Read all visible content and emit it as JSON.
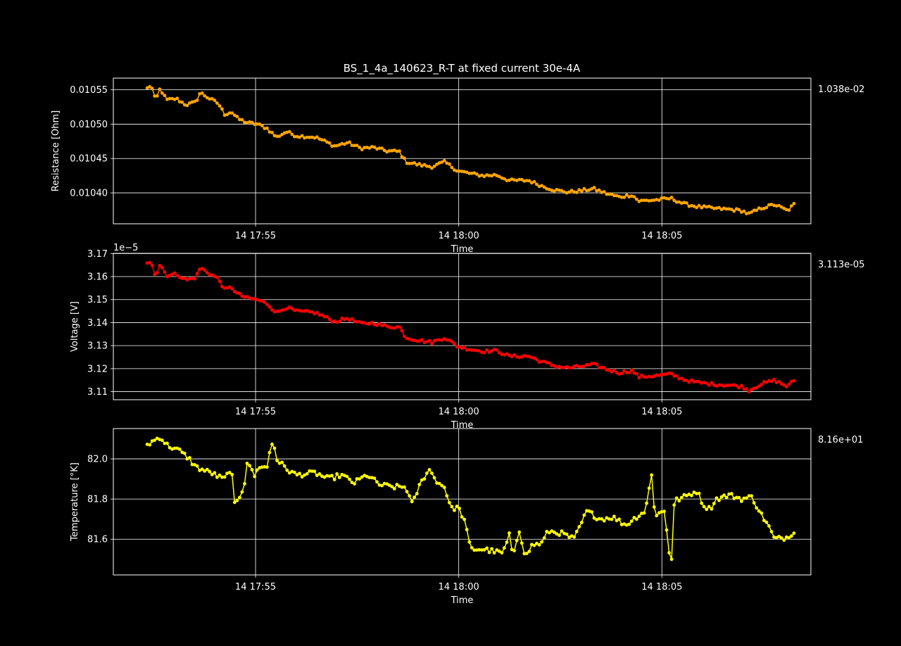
{
  "title": "BS_1_4a_140623_R-T at fixed current 30e-4A",
  "colors": {
    "background": "#000000",
    "axes": "#ffffff",
    "grid": "#ffffff"
  },
  "chart_data": [
    {
      "type": "line",
      "ylabel": "Resistance [Ohm]",
      "xlabel": "Time",
      "x_start": "17:52:20",
      "x_end": "18:08:15",
      "xticks": [
        "14 17:55",
        "14 18:00",
        "14 18:05"
      ],
      "xlim": [
        "17:51:30",
        "18:08:40"
      ],
      "yticks": [
        "0.01040",
        "0.01045",
        "0.01050",
        "0.01055"
      ],
      "ylim": [
        0.010355,
        0.010567
      ],
      "offset_text": "",
      "right_label": "1.038e-02",
      "series": [
        {
          "color": "#ffa500",
          "marker": "circle",
          "keypoints": [
            [
              0,
              0.010552
            ],
            [
              0.006,
              0.010557
            ],
            [
              0.013,
              0.010534
            ],
            [
              0.02,
              0.010552
            ],
            [
              0.03,
              0.010535
            ],
            [
              0.045,
              0.010537
            ],
            [
              0.06,
              0.010528
            ],
            [
              0.075,
              0.010532
            ],
            [
              0.082,
              0.010546
            ],
            [
              0.095,
              0.010538
            ],
            [
              0.11,
              0.01053
            ],
            [
              0.12,
              0.010514
            ],
            [
              0.13,
              0.010518
            ],
            [
              0.14,
              0.010508
            ],
            [
              0.155,
              0.010502
            ],
            [
              0.17,
              0.0105
            ],
            [
              0.185,
              0.010494
            ],
            [
              0.2,
              0.010481
            ],
            [
              0.215,
              0.010489
            ],
            [
              0.23,
              0.010483
            ],
            [
              0.26,
              0.010481
            ],
            [
              0.27,
              0.010477
            ],
            [
              0.29,
              0.010468
            ],
            [
              0.31,
              0.010473
            ],
            [
              0.33,
              0.010465
            ],
            [
              0.35,
              0.010466
            ],
            [
              0.37,
              0.010461
            ],
            [
              0.39,
              0.01046
            ],
            [
              0.4,
              0.010445
            ],
            [
              0.42,
              0.010441
            ],
            [
              0.44,
              0.010438
            ],
            [
              0.46,
              0.010445
            ],
            [
              0.48,
              0.010432
            ],
            [
              0.5,
              0.010428
            ],
            [
              0.52,
              0.010425
            ],
            [
              0.54,
              0.010426
            ],
            [
              0.56,
              0.010418
            ],
            [
              0.59,
              0.010418
            ],
            [
              0.61,
              0.01041
            ],
            [
              0.63,
              0.010404
            ],
            [
              0.65,
              0.010401
            ],
            [
              0.67,
              0.010403
            ],
            [
              0.69,
              0.010406
            ],
            [
              0.71,
              0.010399
            ],
            [
              0.73,
              0.010394
            ],
            [
              0.75,
              0.010397
            ],
            [
              0.76,
              0.010388
            ],
            [
              0.79,
              0.01039
            ],
            [
              0.81,
              0.010392
            ],
            [
              0.83,
              0.010384
            ],
            [
              0.85,
              0.01038
            ],
            [
              0.88,
              0.010377
            ],
            [
              0.9,
              0.010376
            ],
            [
              0.92,
              0.010374
            ],
            [
              0.93,
              0.010369
            ],
            [
              0.95,
              0.010378
            ],
            [
              0.97,
              0.010383
            ],
            [
              0.99,
              0.010374
            ],
            [
              1,
              0.010383
            ]
          ],
          "noise": 2.2e-06
        }
      ]
    },
    {
      "type": "line",
      "ylabel": "Voltage [V]",
      "xlabel": "Time",
      "x_start": "17:52:20",
      "x_end": "18:08:15",
      "xticks": [
        "14 17:55",
        "14 18:00",
        "14 18:05"
      ],
      "xlim": [
        "17:51:30",
        "18:08:40"
      ],
      "yticks": [
        "3.11",
        "3.12",
        "3.13",
        "3.14",
        "3.15",
        "3.16",
        "3.17"
      ],
      "ylim": [
        3.1065e-05,
        3.1701e-05
      ],
      "offset_text": "1e−5",
      "right_label": "3.113e-05",
      "series": [
        {
          "color": "#ff0000",
          "marker": "circle",
          "keypoints": [
            [
              0,
              3.1655e-05
            ],
            [
              0.006,
              3.167e-05
            ],
            [
              0.013,
              3.1602e-05
            ],
            [
              0.02,
              3.1655e-05
            ],
            [
              0.03,
              3.1605e-05
            ],
            [
              0.045,
              3.1611e-05
            ],
            [
              0.06,
              3.1585e-05
            ],
            [
              0.075,
              3.1596e-05
            ],
            [
              0.082,
              3.1638e-05
            ],
            [
              0.095,
              3.1615e-05
            ],
            [
              0.11,
              3.159e-05
            ],
            [
              0.12,
              3.1542e-05
            ],
            [
              0.13,
              3.1554e-05
            ],
            [
              0.14,
              3.1524e-05
            ],
            [
              0.155,
              3.1506e-05
            ],
            [
              0.17,
              3.15e-05
            ],
            [
              0.185,
              3.1482e-05
            ],
            [
              0.2,
              3.1443e-05
            ],
            [
              0.215,
              3.1467e-05
            ],
            [
              0.23,
              3.1449e-05
            ],
            [
              0.26,
              3.1443e-05
            ],
            [
              0.27,
              3.1431e-05
            ],
            [
              0.29,
              3.1404e-05
            ],
            [
              0.31,
              3.1419e-05
            ],
            [
              0.33,
              3.1395e-05
            ],
            [
              0.35,
              3.1398e-05
            ],
            [
              0.37,
              3.1383e-05
            ],
            [
              0.39,
              3.138e-05
            ],
            [
              0.4,
              3.1335e-05
            ],
            [
              0.42,
              3.1323e-05
            ],
            [
              0.44,
              3.1314e-05
            ],
            [
              0.46,
              3.1335e-05
            ],
            [
              0.48,
              3.1296e-05
            ],
            [
              0.5,
              3.1284e-05
            ],
            [
              0.52,
              3.1275e-05
            ],
            [
              0.54,
              3.1278e-05
            ],
            [
              0.56,
              3.1254e-05
            ],
            [
              0.59,
              3.1254e-05
            ],
            [
              0.61,
              3.123e-05
            ],
            [
              0.63,
              3.1212e-05
            ],
            [
              0.65,
              3.1203e-05
            ],
            [
              0.67,
              3.1209e-05
            ],
            [
              0.69,
              3.1218e-05
            ],
            [
              0.71,
              3.1197e-05
            ],
            [
              0.73,
              3.1182e-05
            ],
            [
              0.75,
              3.1191e-05
            ],
            [
              0.76,
              3.1164e-05
            ],
            [
              0.79,
              3.117e-05
            ],
            [
              0.81,
              3.1176e-05
            ],
            [
              0.83,
              3.1152e-05
            ],
            [
              0.85,
              3.114e-05
            ],
            [
              0.88,
              3.1131e-05
            ],
            [
              0.9,
              3.1128e-05
            ],
            [
              0.92,
              3.1122e-05
            ],
            [
              0.93,
              3.1105e-05
            ],
            [
              0.95,
              3.1134e-05
            ],
            [
              0.97,
              3.1149e-05
            ],
            [
              0.99,
              3.1122e-05
            ],
            [
              1,
              3.115e-05
            ]
          ],
          "noise": 6.6e-09
        }
      ]
    },
    {
      "type": "line",
      "ylabel": "Temperature [°K]",
      "xlabel": "Time",
      "x_start": "17:52:20",
      "x_end": "18:08:15",
      "xticks": [
        "14 17:55",
        "14 18:00",
        "14 18:05"
      ],
      "xlim": [
        "17:51:30",
        "18:08:40"
      ],
      "yticks": [
        "81.6",
        "81.8",
        "82.0"
      ],
      "ylim": [
        81.422,
        82.151
      ],
      "offset_text": "",
      "right_label": "8.16e+01",
      "series": [
        {
          "color": "#ffff00",
          "marker": "circle",
          "keypoints": [
            [
              0,
              82.07
            ],
            [
              0.01,
              82.09
            ],
            [
              0.02,
              82.11
            ],
            [
              0.03,
              82.07
            ],
            [
              0.05,
              82.04
            ],
            [
              0.065,
              82.0
            ],
            [
              0.075,
              81.96
            ],
            [
              0.09,
              81.94
            ],
            [
              0.1,
              81.93
            ],
            [
              0.11,
              81.91
            ],
            [
              0.12,
              81.9
            ],
            [
              0.13,
              81.96
            ],
            [
              0.135,
              81.77
            ],
            [
              0.14,
              81.79
            ],
            [
              0.15,
              81.87
            ],
            [
              0.155,
              82.0
            ],
            [
              0.165,
              81.91
            ],
            [
              0.175,
              81.97
            ],
            [
              0.185,
              81.95
            ],
            [
              0.19,
              82.05
            ],
            [
              0.195,
              82.09
            ],
            [
              0.2,
              82.0
            ],
            [
              0.215,
              81.95
            ],
            [
              0.23,
              81.92
            ],
            [
              0.26,
              81.93
            ],
            [
              0.28,
              81.9
            ],
            [
              0.3,
              81.92
            ],
            [
              0.32,
              81.88
            ],
            [
              0.34,
              81.92
            ],
            [
              0.36,
              81.87
            ],
            [
              0.38,
              81.86
            ],
            [
              0.4,
              81.86
            ],
            [
              0.41,
              81.77
            ],
            [
              0.42,
              81.86
            ],
            [
              0.435,
              81.95
            ],
            [
              0.45,
              81.88
            ],
            [
              0.46,
              81.86
            ],
            [
              0.47,
              81.75
            ],
            [
              0.48,
              81.76
            ],
            [
              0.49,
              81.7
            ],
            [
              0.5,
              81.55
            ],
            [
              0.52,
              81.55
            ],
            [
              0.55,
              81.53
            ],
            [
              0.56,
              81.62
            ],
            [
              0.565,
              81.51
            ],
            [
              0.575,
              81.65
            ],
            [
              0.585,
              81.51
            ],
            [
              0.595,
              81.57
            ],
            [
              0.61,
              81.58
            ],
            [
              0.62,
              81.64
            ],
            [
              0.64,
              81.63
            ],
            [
              0.66,
              81.6
            ],
            [
              0.68,
              81.74
            ],
            [
              0.7,
              81.7
            ],
            [
              0.72,
              81.71
            ],
            [
              0.74,
              81.67
            ],
            [
              0.76,
              81.72
            ],
            [
              0.77,
              81.74
            ],
            [
              0.78,
              81.92
            ],
            [
              0.785,
              81.72
            ],
            [
              0.8,
              81.74
            ],
            [
              0.81,
              81.45
            ],
            [
              0.815,
              81.79
            ],
            [
              0.83,
              81.81
            ],
            [
              0.85,
              81.84
            ],
            [
              0.86,
              81.77
            ],
            [
              0.87,
              81.75
            ],
            [
              0.88,
              81.8
            ],
            [
              0.9,
              81.82
            ],
            [
              0.92,
              81.8
            ],
            [
              0.935,
              81.81
            ],
            [
              0.95,
              81.72
            ],
            [
              0.96,
              81.67
            ],
            [
              0.97,
              81.6
            ],
            [
              0.99,
              81.61
            ],
            [
              1,
              81.64
            ]
          ],
          "noise": 0.013
        }
      ]
    }
  ]
}
